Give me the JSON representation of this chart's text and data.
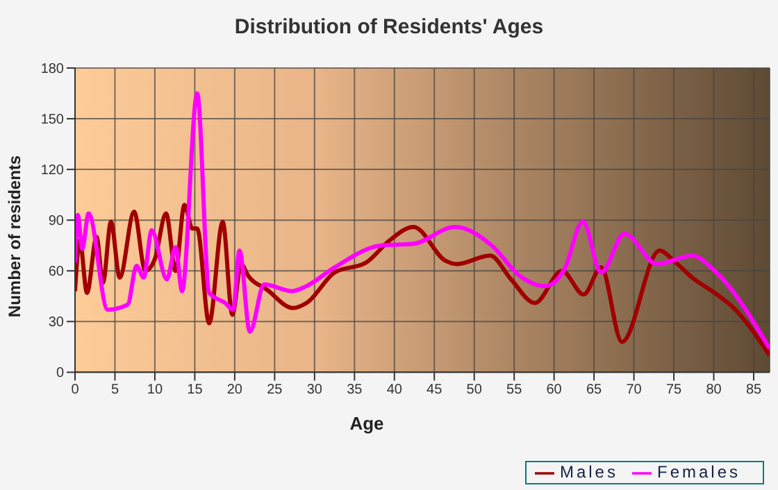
{
  "chart_data": {
    "type": "line",
    "title": "Distribution of Residents' Ages",
    "xlabel": "Age",
    "ylabel": "Number of residents",
    "xlim": [
      0,
      87
    ],
    "xticks": [
      0,
      5,
      10,
      15,
      20,
      25,
      30,
      35,
      40,
      45,
      50,
      55,
      60,
      65,
      70,
      75,
      80,
      85
    ],
    "ylim": [
      0,
      180
    ],
    "yticks": [
      0,
      30,
      60,
      90,
      120,
      150,
      180
    ],
    "grid": true,
    "legend": "bottom right",
    "marker": "none",
    "line_style": "solid",
    "series": [
      {
        "name": "Males",
        "color": "#a00000",
        "x": [
          0,
          0.6,
          1.5,
          2.7,
          3.5,
          4.5,
          5.6,
          7.4,
          8.8,
          10,
          11.4,
          12.6,
          13.7,
          14.7,
          15.3,
          16.8,
          18.5,
          19.7,
          20.8,
          21.7,
          24,
          27.3,
          29,
          32.5,
          36.5,
          39.4,
          42.4,
          46.4,
          47.8,
          52,
          54.6,
          57.6,
          61,
          63.7,
          65.9,
          68.5,
          73.2,
          75.2,
          77.3,
          80.1,
          82.5,
          87
        ],
        "values": [
          48,
          78,
          47,
          80,
          53,
          89,
          56,
          95,
          60,
          67,
          94,
          60,
          99,
          85,
          85,
          29,
          89,
          34,
          64,
          57,
          49,
          38,
          41,
          59,
          65,
          78,
          86,
          66,
          64,
          69,
          55,
          41,
          60,
          46,
          62,
          18,
          72,
          65,
          56,
          47,
          38,
          10
        ]
      },
      {
        "name": "Females",
        "color": "#ff00ff",
        "x": [
          0,
          0.35,
          0.9,
          1.7,
          4.1,
          6.6,
          7.7,
          8.6,
          9.6,
          11.5,
          12.6,
          13.4,
          15.3,
          16.8,
          18.8,
          19.8,
          20.6,
          21.9,
          23.7,
          27.2,
          29,
          32.5,
          38.3,
          42.4,
          47.6,
          52.2,
          55.7,
          58.9,
          61.3,
          63.6,
          65.9,
          68.8,
          72.9,
          77.3,
          80.1,
          87
        ],
        "values": [
          65,
          93,
          73,
          94,
          37,
          40,
          63,
          56,
          84,
          55,
          74,
          48,
          165,
          47,
          41,
          37,
          72,
          24,
          52,
          48,
          51,
          62,
          75,
          76,
          86,
          75,
          57,
          51,
          61,
          89,
          59,
          82,
          64,
          69,
          60,
          14
        ]
      }
    ]
  }
}
